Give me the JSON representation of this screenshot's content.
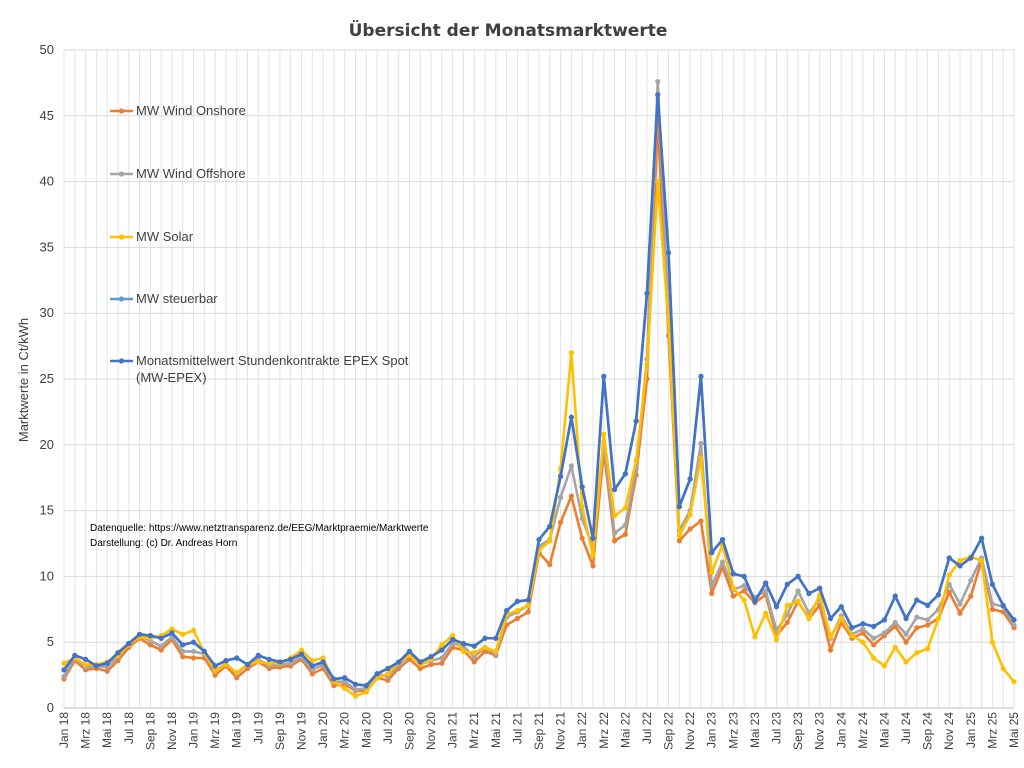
{
  "chart_data": {
    "type": "line",
    "title": "Übersicht der Monatsmarktwerte",
    "ylabel": "Marktwerte in Ct/kWh",
    "xlabel": "",
    "ylim": [
      0,
      50
    ],
    "yticks": [
      "0",
      "5",
      "10",
      "15",
      "20",
      "25",
      "30",
      "35",
      "40",
      "45",
      "50"
    ],
    "grid": true,
    "legend_position": "top-left",
    "x": [
      "Jan 18",
      "Feb 18",
      "Mrz 18",
      "Apr 18",
      "Mai 18",
      "Jun 18",
      "Jul 18",
      "Aug 18",
      "Sep 18",
      "Okt 18",
      "Nov 18",
      "Dez 18",
      "Jan 19",
      "Feb 19",
      "Mrz 19",
      "Apr 19",
      "Mai 19",
      "Jun 19",
      "Jul 19",
      "Aug 19",
      "Sep 19",
      "Okt 19",
      "Nov 19",
      "Dez 19",
      "Jan 20",
      "Feb 20",
      "Mrz 20",
      "Apr 20",
      "Mai 20",
      "Jun 20",
      "Jul 20",
      "Aug 20",
      "Sep 20",
      "Okt 20",
      "Nov 20",
      "Dez 20",
      "Jan 21",
      "Feb 21",
      "Mrz 21",
      "Apr 21",
      "Mai 21",
      "Jun 21",
      "Jul 21",
      "Aug 21",
      "Sep 21",
      "Okt 21",
      "Nov 21",
      "Dez 21",
      "Jan 22",
      "Feb 22",
      "Mrz 22",
      "Apr 22",
      "Mai 22",
      "Jun 22",
      "Jul 22",
      "Aug 22",
      "Sep 22",
      "Okt 22",
      "Nov 22",
      "Dez 22",
      "Jan 23",
      "Feb 23",
      "Mrz 23",
      "Apr 23",
      "Mai 23",
      "Jun 23",
      "Jul 23",
      "Aug 23",
      "Sep 23",
      "Okt 23",
      "Nov 23",
      "Dez 23",
      "Jan 24",
      "Feb 24",
      "Mrz 24",
      "Apr 24",
      "Mai 24",
      "Jun 24",
      "Jul 24",
      "Aug 24",
      "Sep 24",
      "Okt 24",
      "Nov 24",
      "Dez 24",
      "Jan 25",
      "Feb 25",
      "Mrz 25",
      "Apr 25",
      "Mai 25"
    ],
    "x_tick_labels": [
      "Jan 18",
      "Mrz 18",
      "Mai 18",
      "Jul 18",
      "Sep 18",
      "Nov 18",
      "Jan 19",
      "Mrz 19",
      "Mai 19",
      "Jul 19",
      "Sep 19",
      "Nov 19",
      "Jan 20",
      "Mrz 20",
      "Mai 20",
      "Jul 20",
      "Sep 20",
      "Nov 20",
      "Jan 21",
      "Mrz 21",
      "Mai 21",
      "Jul 21",
      "Sep 21",
      "Nov 21",
      "Jan 22",
      "Mrz 22",
      "Mai 22",
      "Jul 22",
      "Sep 22",
      "Nov 22",
      "Jan 23",
      "Mrz 23",
      "Mai 23",
      "Jul 23",
      "Sep 23",
      "Nov 23",
      "Jan 24",
      "Mrz 24",
      "Mai 24",
      "Jul 24",
      "Sep 24",
      "Nov 24",
      "Jan 25",
      "Mrz 25",
      "Mai 25"
    ],
    "series": [
      {
        "name": "MW Wind Onshore",
        "color": "#ED7D31",
        "values": [
          2.2,
          3.6,
          2.9,
          3.0,
          2.8,
          3.6,
          4.6,
          5.3,
          4.8,
          4.4,
          5.2,
          3.9,
          3.8,
          3.8,
          2.5,
          3.2,
          2.3,
          3.0,
          3.5,
          3.0,
          3.1,
          3.2,
          3.7,
          2.6,
          3.0,
          1.7,
          1.8,
          1.3,
          1.3,
          2.3,
          2.1,
          3.0,
          3.7,
          3.0,
          3.3,
          3.4,
          4.6,
          4.4,
          3.5,
          4.3,
          4.0,
          6.3,
          6.8,
          7.3,
          11.8,
          10.9,
          14.1,
          16.1,
          12.9,
          10.8,
          19.6,
          12.7,
          13.2,
          17.7,
          25.0,
          44.5,
          28.3,
          12.7,
          13.6,
          14.2,
          8.7,
          10.7,
          8.5,
          8.9,
          8.0,
          8.6,
          5.5,
          6.5,
          8.1,
          6.8,
          7.8,
          4.4,
          6.5,
          5.3,
          5.7,
          4.8,
          5.5,
          6.2,
          5.0,
          6.1,
          6.3,
          6.8,
          8.8,
          7.2,
          8.5,
          11.2,
          7.5,
          7.3,
          6.1
        ]
      },
      {
        "name": "MW Wind Offshore",
        "color": "#A5A5A5",
        "values": [
          2.4,
          3.8,
          3.1,
          3.2,
          3.1,
          3.9,
          4.9,
          5.5,
          5.1,
          4.7,
          5.4,
          4.3,
          4.3,
          4.1,
          2.8,
          3.4,
          2.6,
          3.3,
          3.7,
          3.2,
          3.3,
          3.4,
          3.9,
          2.9,
          3.3,
          2.0,
          2.0,
          1.4,
          1.5,
          2.6,
          2.4,
          3.3,
          4.0,
          3.3,
          3.6,
          3.8,
          4.9,
          4.7,
          3.9,
          4.6,
          4.1,
          6.9,
          7.3,
          7.8,
          12.3,
          12.8,
          16.0,
          18.4,
          14.4,
          12.2,
          20.2,
          13.3,
          13.9,
          18.2,
          26.5,
          47.6,
          30.0,
          13.5,
          15.0,
          20.1,
          9.3,
          11.1,
          9.0,
          9.3,
          8.4,
          8.9,
          5.9,
          7.1,
          8.9,
          7.2,
          8.3,
          5.3,
          7.0,
          5.6,
          6.0,
          5.3,
          5.7,
          6.5,
          5.6,
          6.9,
          6.7,
          7.5,
          9.4,
          7.9,
          9.7,
          11.4,
          7.9,
          7.7,
          6.3
        ]
      },
      {
        "name": "MW Solar",
        "color": "#FFC000",
        "values": [
          3.4,
          3.8,
          3.3,
          3.3,
          3.5,
          4.0,
          4.8,
          5.4,
          5.3,
          5.5,
          6.0,
          5.6,
          5.9,
          4.2,
          2.8,
          3.3,
          2.7,
          3.3,
          3.5,
          3.4,
          3.4,
          3.8,
          4.4,
          3.6,
          3.8,
          2.0,
          1.5,
          0.9,
          1.2,
          2.3,
          2.6,
          3.5,
          4.0,
          3.3,
          3.7,
          4.8,
          5.5,
          4.3,
          4.2,
          4.6,
          4.3,
          7.1,
          7.4,
          7.8,
          12.0,
          12.7,
          18.2,
          27.0,
          15.3,
          11.6,
          20.8,
          14.6,
          15.2,
          18.8,
          26.1,
          40.0,
          29.3,
          13.1,
          14.7,
          19.0,
          10.3,
          12.4,
          9.1,
          8.2,
          5.4,
          7.2,
          5.2,
          7.8,
          8.1,
          6.8,
          8.6,
          5.4,
          6.8,
          5.5,
          5.0,
          3.8,
          3.2,
          4.6,
          3.5,
          4.2,
          4.5,
          6.8,
          10.1,
          11.2,
          11.5,
          11.2,
          5.0,
          3.0,
          2.0
        ]
      },
      {
        "name": "MW steuerbar",
        "color": "#5B9BD5",
        "values": [
          2.9,
          4.0,
          3.7,
          3.2,
          3.4,
          4.2,
          4.9,
          5.6,
          5.5,
          5.3,
          5.7,
          4.8,
          5.0,
          4.3,
          3.2,
          3.6,
          3.8,
          3.3,
          4.0,
          3.7,
          3.5,
          3.7,
          4.1,
          3.2,
          3.5,
          2.2,
          2.3,
          1.8,
          1.7,
          2.6,
          3.0,
          3.5,
          4.3,
          3.5,
          3.9,
          4.4,
          5.2,
          4.9,
          4.7,
          5.3,
          5.3,
          7.4,
          8.1,
          8.2,
          12.8,
          13.8,
          17.6,
          22.1,
          16.8,
          12.9,
          25.2,
          16.6,
          17.8,
          21.8,
          31.5,
          46.6,
          34.6,
          15.3,
          17.4,
          25.2,
          11.8,
          12.8,
          10.2,
          10.0,
          8.1,
          9.5,
          7.7,
          9.4,
          10.0,
          8.7,
          9.1,
          6.8,
          7.7,
          6.1,
          6.4,
          6.2,
          6.7,
          8.5,
          6.8,
          8.2,
          7.8,
          8.6,
          11.4,
          10.8,
          11.4,
          12.9,
          9.4,
          7.8,
          6.7
        ]
      },
      {
        "name": "Monatsmittelwert Stundenkontrakte EPEX Spot (MW-EPEX)",
        "color": "#4472C4",
        "values": [
          2.9,
          4.0,
          3.7,
          3.2,
          3.4,
          4.2,
          4.9,
          5.6,
          5.5,
          5.3,
          5.7,
          4.8,
          5.0,
          4.3,
          3.2,
          3.6,
          3.8,
          3.3,
          4.0,
          3.7,
          3.5,
          3.7,
          4.1,
          3.2,
          3.5,
          2.2,
          2.3,
          1.8,
          1.7,
          2.6,
          3.0,
          3.5,
          4.3,
          3.5,
          3.9,
          4.4,
          5.2,
          4.9,
          4.7,
          5.3,
          5.3,
          7.4,
          8.1,
          8.2,
          12.8,
          13.8,
          17.6,
          22.1,
          16.8,
          12.9,
          25.2,
          16.6,
          17.8,
          21.8,
          31.5,
          46.6,
          34.6,
          15.3,
          17.4,
          25.2,
          11.8,
          12.8,
          10.2,
          10.0,
          8.1,
          9.5,
          7.7,
          9.4,
          10.0,
          8.7,
          9.1,
          6.8,
          7.7,
          6.1,
          6.4,
          6.2,
          6.7,
          8.5,
          6.8,
          8.2,
          7.8,
          8.6,
          11.4,
          10.8,
          11.4,
          12.9,
          9.4,
          7.8,
          6.7
        ]
      }
    ],
    "legend_lines": [
      [
        "MW Wind Onshore"
      ],
      [
        "MW Wind Offshore"
      ],
      [
        "MW Solar"
      ],
      [
        "MW steuerbar"
      ],
      [
        "Monatsmittelwert Stundenkontrakte EPEX Spot",
        "(MW-EPEX)"
      ]
    ],
    "annotations": [
      "Datenquelle: https://www.netztransparenz.de/EEG/Marktpraemie/Marktwerte",
      "Darstellung: (c) Dr. Andreas Horn"
    ]
  }
}
